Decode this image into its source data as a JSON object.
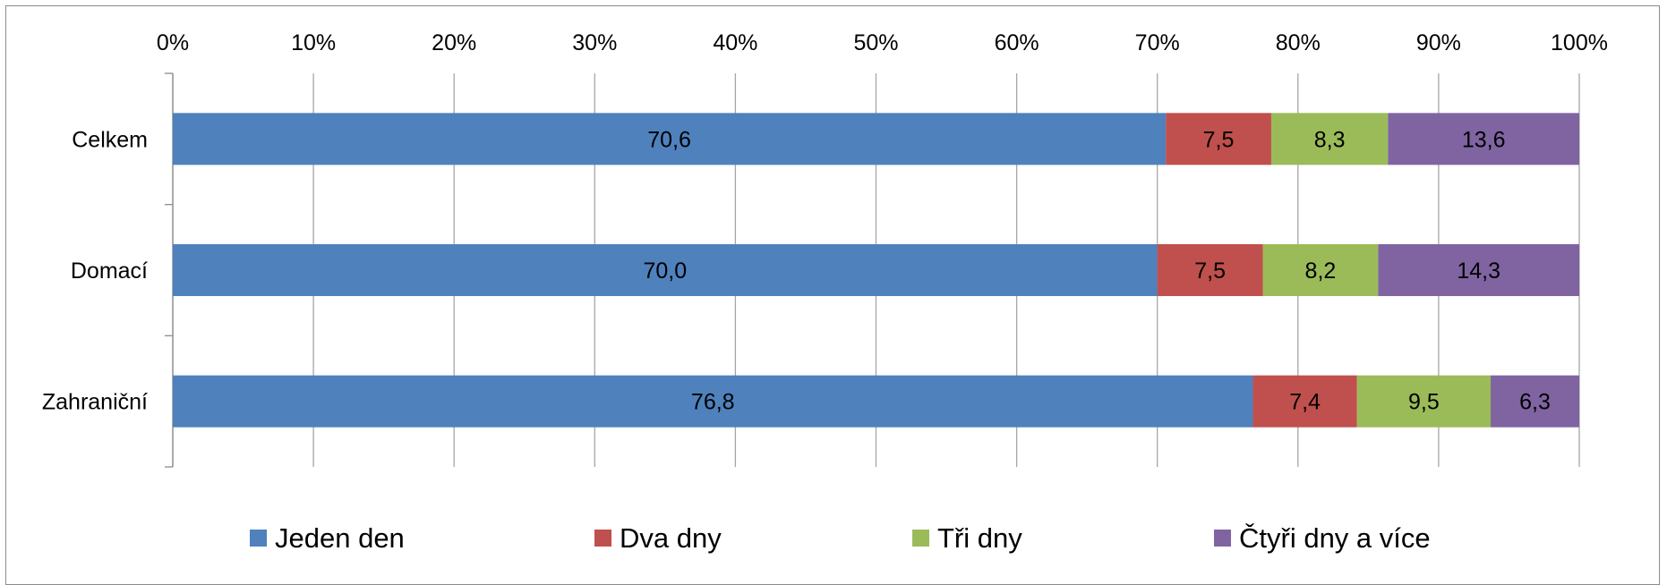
{
  "chart_data": {
    "type": "bar",
    "orientation": "horizontal",
    "stacked": "percent",
    "categories": [
      "Celkem",
      "Domací",
      "Zahraniční"
    ],
    "series": [
      {
        "name": "Jeden den",
        "color": "#4F81BD",
        "values": [
          70.6,
          70.0,
          76.8
        ],
        "labels": [
          "70,6",
          "70,0",
          "76,8"
        ]
      },
      {
        "name": "Dva dny",
        "color": "#C0504D",
        "values": [
          7.5,
          7.5,
          7.4
        ],
        "labels": [
          "7,5",
          "7,5",
          "7,4"
        ]
      },
      {
        "name": "Tři dny",
        "color": "#9BBB59",
        "values": [
          8.3,
          8.2,
          9.5
        ],
        "labels": [
          "8,3",
          "8,2",
          "9,5"
        ]
      },
      {
        "name": "Čtyři dny a více",
        "color": "#8064A2",
        "values": [
          13.6,
          14.3,
          6.3
        ],
        "labels": [
          "13,6",
          "14,3",
          "6,3"
        ]
      }
    ],
    "xticks": [
      "0%",
      "10%",
      "20%",
      "30%",
      "40%",
      "50%",
      "60%",
      "70%",
      "80%",
      "90%",
      "100%"
    ],
    "xlim": [
      0,
      100
    ],
    "x_axis_position": "top",
    "grid": true,
    "legend": "bottom"
  }
}
